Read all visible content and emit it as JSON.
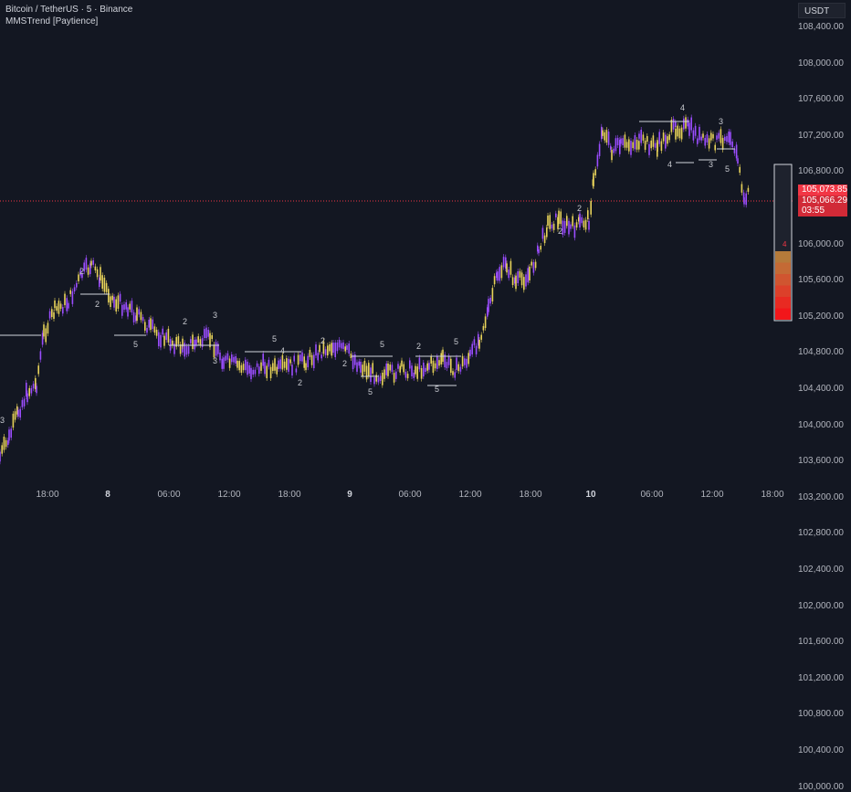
{
  "header": {
    "symbol": "Bitcoin / TetherUS · 5 · Binance",
    "indicator": "MMSTrend [Paytience]"
  },
  "currency": "USDT",
  "price_axis": [
    "108,400.00",
    "108,000.00",
    "107,600.00",
    "107,200.00",
    "106,800.00",
    "106,400.00",
    "106,000.00",
    "105,600.00",
    "105,200.00",
    "104,800.00",
    "104,400.00",
    "104,000.00",
    "103,600.00",
    "103,200.00",
    "102,800.00",
    "102,400.00",
    "102,000.00",
    "101,600.00",
    "101,200.00",
    "100,800.00",
    "100,400.00",
    "100,000.00"
  ],
  "time_axis": [
    "18:00",
    "8",
    "06:00",
    "12:00",
    "18:00",
    "9",
    "06:00",
    "12:00",
    "18:00",
    "10",
    "06:00",
    "12:00",
    "18:00"
  ],
  "last_price": "105,073.85",
  "last_price_2": "105,066.29",
  "countdown": "03:55",
  "counts": [
    {
      "t": "3"
    },
    {
      "t": "2"
    },
    {
      "t": "2"
    },
    {
      "t": "5"
    },
    {
      "t": "2"
    },
    {
      "t": "3"
    },
    {
      "t": "3"
    },
    {
      "t": "5"
    },
    {
      "t": "4"
    },
    {
      "t": "2"
    },
    {
      "t": "2"
    },
    {
      "t": "2"
    },
    {
      "t": "5"
    },
    {
      "t": "5"
    },
    {
      "t": "2"
    },
    {
      "t": "5"
    },
    {
      "t": "5"
    },
    {
      "t": "2"
    },
    {
      "t": "4"
    },
    {
      "t": "4"
    },
    {
      "t": "3"
    },
    {
      "t": "3"
    },
    {
      "t": "5"
    },
    {
      "t": "2"
    }
  ],
  "colors": {
    "bg": "#131722",
    "candle_up": "#e8d35a",
    "candle_down": "#9b4dff",
    "level": "#d1d4dc",
    "last_line": "#f23645"
  },
  "gauge": {
    "label": "4"
  }
}
